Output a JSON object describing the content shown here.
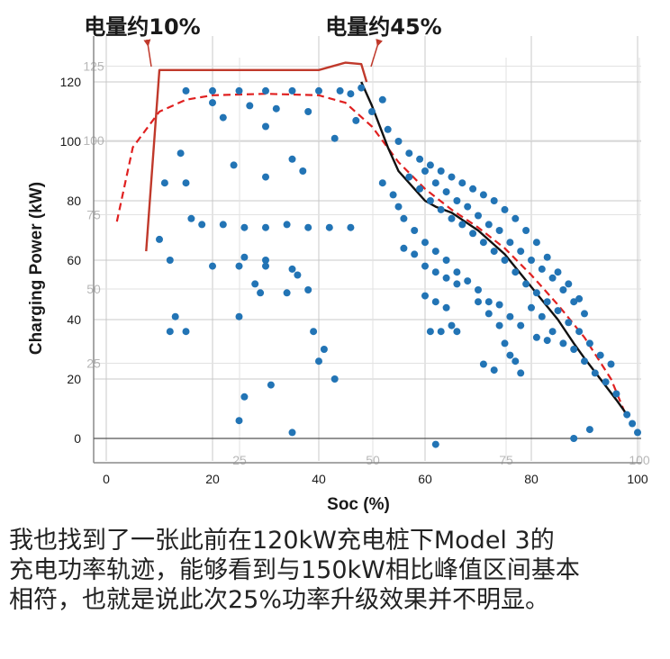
{
  "chart_data": {
    "type": "scatter",
    "xlabel": "Soc (%)",
    "ylabel": "Charging Power (kW)",
    "xlim": [
      0,
      100
    ],
    "ylim": [
      0,
      125
    ],
    "x_ticks": [
      "0",
      "20",
      "40",
      "60",
      "80",
      "100"
    ],
    "y_ticks": [
      "0",
      "20",
      "40",
      "60",
      "80",
      "100",
      "120"
    ],
    "overlay_ticks_x": [
      "25",
      "50",
      "75",
      "100"
    ],
    "overlay_ticks_y": [
      "25",
      "50",
      "75",
      "100",
      "125"
    ],
    "grid": true,
    "annotations": [
      {
        "text": "电量约10%",
        "at": [
          10,
          124
        ]
      },
      {
        "text": "电量约45%",
        "at": [
          45,
          124
        ]
      }
    ],
    "series": [
      {
        "type": "line",
        "style": "solid",
        "color": "#c0392b",
        "points": [
          [
            7.5,
            63
          ],
          [
            10,
            124
          ],
          [
            40,
            124
          ],
          [
            45,
            126.5
          ],
          [
            48,
            126
          ],
          [
            49,
            120
          ]
        ]
      },
      {
        "type": "line",
        "style": "dashed",
        "color": "#e02020",
        "points": [
          [
            2,
            73
          ],
          [
            5,
            98
          ],
          [
            10,
            110
          ],
          [
            15,
            114
          ],
          [
            20,
            115.5
          ],
          [
            30,
            116
          ],
          [
            40,
            115.5
          ],
          [
            45,
            113
          ],
          [
            50,
            105
          ],
          [
            55,
            93
          ],
          [
            60,
            84
          ],
          [
            65,
            77
          ],
          [
            70,
            71
          ],
          [
            75,
            64
          ],
          [
            80,
            55
          ],
          [
            85,
            45
          ],
          [
            90,
            34
          ],
          [
            95,
            20
          ],
          [
            98,
            7
          ]
        ]
      },
      {
        "type": "line",
        "style": "solid",
        "color": "#111111",
        "points": [
          [
            48,
            120
          ],
          [
            50,
            112
          ],
          [
            53,
            98
          ],
          [
            55,
            90
          ],
          [
            58,
            84
          ],
          [
            60,
            80
          ],
          [
            62,
            78
          ],
          [
            65,
            76
          ],
          [
            70,
            70
          ],
          [
            75,
            62
          ],
          [
            80,
            51
          ],
          [
            85,
            40
          ],
          [
            88,
            32
          ],
          [
            90,
            27
          ],
          [
            93,
            20
          ],
          [
            96,
            13
          ],
          [
            98,
            8
          ]
        ]
      },
      {
        "type": "scatter",
        "color": "#2274b5",
        "points": [
          [
            15,
            117
          ],
          [
            20,
            117
          ],
          [
            25,
            117
          ],
          [
            30,
            117
          ],
          [
            35,
            117
          ],
          [
            40,
            117
          ],
          [
            44,
            117
          ],
          [
            46,
            116
          ],
          [
            20,
            113
          ],
          [
            27,
            112
          ],
          [
            32,
            111
          ],
          [
            38,
            110
          ],
          [
            22,
            108
          ],
          [
            30,
            105
          ],
          [
            43,
            101
          ],
          [
            35,
            94
          ],
          [
            37,
            90
          ],
          [
            24,
            92
          ],
          [
            30,
            88
          ],
          [
            47,
            107
          ],
          [
            14,
            96
          ],
          [
            15,
            86
          ],
          [
            11,
            86
          ],
          [
            10,
            67
          ],
          [
            12,
            60
          ],
          [
            16,
            74
          ],
          [
            18,
            72
          ],
          [
            22,
            72
          ],
          [
            26,
            71
          ],
          [
            30,
            71
          ],
          [
            34,
            72
          ],
          [
            38,
            71
          ],
          [
            42,
            71
          ],
          [
            46,
            71
          ],
          [
            20,
            58
          ],
          [
            25,
            58
          ],
          [
            30,
            58
          ],
          [
            35,
            57
          ],
          [
            26,
            61
          ],
          [
            30,
            60
          ],
          [
            28,
            52
          ],
          [
            25,
            41
          ],
          [
            34,
            49
          ],
          [
            29,
            49
          ],
          [
            26,
            14
          ],
          [
            25,
            6
          ],
          [
            31,
            18
          ],
          [
            35,
            2
          ],
          [
            39,
            36
          ],
          [
            41,
            30
          ],
          [
            40,
            26
          ],
          [
            43,
            20
          ],
          [
            15,
            36
          ],
          [
            13,
            41
          ],
          [
            12,
            36
          ],
          [
            38,
            50
          ],
          [
            36,
            55
          ],
          [
            52,
            86
          ],
          [
            54,
            82
          ],
          [
            55,
            78
          ],
          [
            56,
            74
          ],
          [
            58,
            70
          ],
          [
            60,
            66
          ],
          [
            62,
            63
          ],
          [
            64,
            60
          ],
          [
            66,
            56
          ],
          [
            68,
            53
          ],
          [
            70,
            50
          ],
          [
            72,
            46
          ],
          [
            74,
            45
          ],
          [
            76,
            41
          ],
          [
            78,
            38
          ],
          [
            80,
            44
          ],
          [
            82,
            41
          ],
          [
            84,
            36
          ],
          [
            86,
            32
          ],
          [
            88,
            30
          ],
          [
            90,
            26
          ],
          [
            92,
            22
          ],
          [
            94,
            19
          ],
          [
            96,
            15
          ],
          [
            98,
            8
          ],
          [
            99,
            5
          ],
          [
            100,
            2
          ],
          [
            57,
            88
          ],
          [
            59,
            84
          ],
          [
            61,
            80
          ],
          [
            63,
            77
          ],
          [
            65,
            74
          ],
          [
            67,
            72
          ],
          [
            69,
            69
          ],
          [
            71,
            66
          ],
          [
            73,
            63
          ],
          [
            75,
            60
          ],
          [
            77,
            56
          ],
          [
            79,
            52
          ],
          [
            81,
            49
          ],
          [
            83,
            46
          ],
          [
            85,
            43
          ],
          [
            87,
            39
          ],
          [
            89,
            36
          ],
          [
            91,
            32
          ],
          [
            93,
            28
          ],
          [
            95,
            25
          ],
          [
            60,
            90
          ],
          [
            62,
            86
          ],
          [
            64,
            83
          ],
          [
            66,
            80
          ],
          [
            68,
            78
          ],
          [
            70,
            75
          ],
          [
            72,
            72
          ],
          [
            74,
            70
          ],
          [
            76,
            66
          ],
          [
            78,
            63
          ],
          [
            80,
            60
          ],
          [
            82,
            57
          ],
          [
            84,
            54
          ],
          [
            86,
            50
          ],
          [
            88,
            46
          ],
          [
            90,
            42
          ],
          [
            53,
            104
          ],
          [
            55,
            100
          ],
          [
            57,
            96
          ],
          [
            59,
            94
          ],
          [
            61,
            92
          ],
          [
            63,
            90
          ],
          [
            65,
            88
          ],
          [
            67,
            86
          ],
          [
            69,
            84
          ],
          [
            71,
            82
          ],
          [
            73,
            80
          ],
          [
            75,
            77
          ],
          [
            77,
            74
          ],
          [
            79,
            70
          ],
          [
            81,
            66
          ],
          [
            83,
            61
          ],
          [
            85,
            56
          ],
          [
            87,
            52
          ],
          [
            89,
            47
          ],
          [
            50,
            110
          ],
          [
            52,
            114
          ],
          [
            48,
            118
          ],
          [
            56,
            64
          ],
          [
            58,
            62
          ],
          [
            60,
            58
          ],
          [
            62,
            56
          ],
          [
            64,
            54
          ],
          [
            66,
            52
          ],
          [
            60,
            48
          ],
          [
            62,
            46
          ],
          [
            64,
            44
          ],
          [
            65,
            38
          ],
          [
            63,
            36
          ],
          [
            61,
            36
          ],
          [
            66,
            36
          ],
          [
            74,
            38
          ],
          [
            75,
            32
          ],
          [
            76,
            28
          ],
          [
            77,
            26
          ],
          [
            78,
            22
          ],
          [
            71,
            25
          ],
          [
            73,
            23
          ],
          [
            62,
            -2
          ],
          [
            88,
            0
          ],
          [
            91,
            3
          ],
          [
            70,
            46
          ],
          [
            72,
            42
          ],
          [
            81,
            34
          ],
          [
            83,
            33
          ]
        ]
      }
    ]
  },
  "caption": {
    "lines": [
      "我也找到了一张此前在120kW充电桩下Model 3的",
      "充电功率轨迹，能够看到与150kW相比峰值区间基本",
      "相符，也就是说此次25%功率升级效果并不明显。"
    ]
  }
}
